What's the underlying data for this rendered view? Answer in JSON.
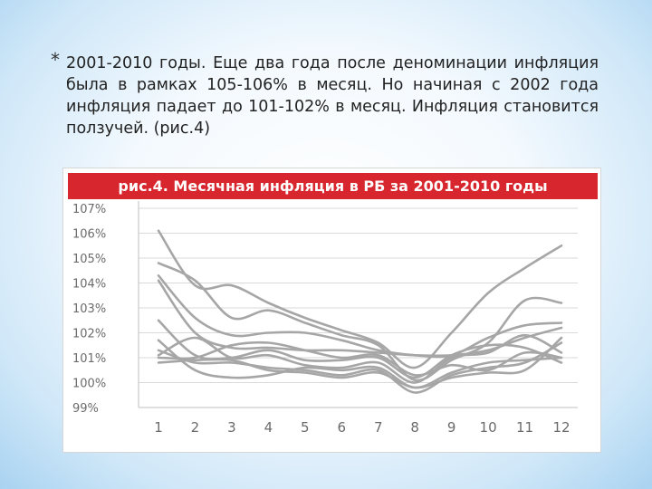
{
  "slide": {
    "bullet": "*",
    "text": "2001-2010 годы. Еще два года после деноминации инфляция была в рамках 105-106% в месяц. Но начиная с 2002 года инфляция падает до 101-102% в месяц. Инфляция становится ползучей. (рис.4)"
  },
  "colors": {
    "title_bar": "#d7262e",
    "line": "#a6a6a6",
    "grid": "#d9d9d9",
    "tick_text": "#6b6b6b"
  },
  "chart_data": {
    "type": "line",
    "title": "рис.4. Месячная инфляция в РБ за 2001-2010 годы",
    "xlabel": "",
    "ylabel": "",
    "x": [
      1,
      2,
      3,
      4,
      5,
      6,
      7,
      8,
      9,
      10,
      11,
      12
    ],
    "x_tick_labels": [
      "1",
      "2",
      "3",
      "4",
      "5",
      "6",
      "7",
      "8",
      "9",
      "10",
      "11",
      "12"
    ],
    "y_tick_values": [
      99,
      100,
      101,
      102,
      103,
      104,
      105,
      106,
      107
    ],
    "y_tick_labels": [
      "99%",
      "100%",
      "101%",
      "102%",
      "103%",
      "104%",
      "105%",
      "106%",
      "107%"
    ],
    "ylim": [
      99,
      107
    ],
    "grid": "horizontal",
    "legend": "none",
    "series": [
      {
        "values": [
          106.1,
          103.9,
          103.9,
          103.2,
          102.6,
          102.1,
          101.6,
          100.6,
          102.0,
          103.6,
          104.6,
          105.5
        ]
      },
      {
        "values": [
          104.8,
          104.1,
          102.6,
          102.9,
          102.4,
          101.9,
          101.5,
          100.1,
          100.9,
          101.6,
          103.3,
          103.2
        ]
      },
      {
        "values": [
          104.3,
          102.6,
          101.9,
          102.0,
          102.0,
          101.7,
          101.3,
          101.1,
          101.1,
          101.8,
          102.3,
          102.4
        ]
      },
      {
        "values": [
          104.1,
          102.0,
          101.4,
          101.4,
          101.3,
          101.3,
          101.2,
          101.1,
          101.1,
          101.3,
          101.8,
          102.2
        ]
      },
      {
        "values": [
          102.5,
          101.1,
          101.0,
          101.3,
          100.9,
          100.9,
          101.0,
          100.2,
          101.1,
          101.5,
          101.4,
          100.8
        ]
      },
      {
        "values": [
          101.7,
          100.5,
          100.2,
          100.3,
          100.6,
          100.5,
          100.6,
          99.8,
          100.4,
          100.8,
          100.9,
          101.0
        ]
      },
      {
        "values": [
          101.3,
          100.8,
          100.8,
          100.6,
          100.5,
          100.3,
          100.5,
          99.6,
          100.3,
          100.6,
          100.8,
          101.6
        ]
      },
      {
        "values": [
          101.1,
          101.8,
          101.0,
          101.1,
          100.7,
          100.6,
          100.8,
          100.0,
          101.0,
          101.2,
          101.9,
          101.2
        ]
      },
      {
        "values": [
          101.0,
          101.0,
          101.5,
          101.6,
          101.3,
          101.0,
          101.1,
          100.3,
          100.7,
          100.5,
          101.2,
          101.0
        ]
      },
      {
        "values": [
          100.8,
          100.9,
          100.9,
          100.5,
          100.4,
          100.2,
          100.4,
          99.8,
          100.2,
          100.4,
          100.5,
          101.8
        ]
      }
    ]
  }
}
